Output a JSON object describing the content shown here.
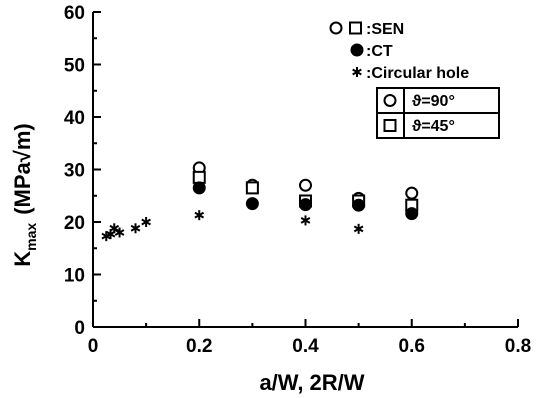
{
  "chart_data": {
    "type": "scatter",
    "xlabel": "a/W, 2R/W",
    "ylabel": "K_max (MPa√m)",
    "ylabel_main": "K",
    "ylabel_sub": "max",
    "ylabel_unit": "(MPa√m)",
    "xlim": [
      0,
      0.8
    ],
    "ylim": [
      0,
      60
    ],
    "x_ticks": [
      "0",
      "0.2",
      "0.4",
      "0.6",
      "0.8"
    ],
    "y_ticks": [
      "0",
      "10",
      "20",
      "30",
      "40",
      "50",
      "60"
    ],
    "grid": false,
    "legend_placement": "top-right",
    "legend": {
      "sen_label": ":SEN",
      "ct_label": ":CT",
      "hole_label": ":Circular hole",
      "angle_90": "ϑ=90°",
      "angle_45": "ϑ=45°"
    },
    "series": [
      {
        "name": "SEN ϑ=90°",
        "marker": "open-circle",
        "points": [
          [
            0.2,
            30.3
          ],
          [
            0.3,
            27.0
          ],
          [
            0.4,
            27.0
          ],
          [
            0.5,
            24.5
          ],
          [
            0.6,
            25.5
          ]
        ]
      },
      {
        "name": "SEN ϑ=45°",
        "marker": "open-square",
        "points": [
          [
            0.2,
            28.5
          ],
          [
            0.3,
            26.5
          ],
          [
            0.4,
            24.0
          ],
          [
            0.5,
            24.0
          ],
          [
            0.6,
            23.2
          ]
        ]
      },
      {
        "name": "CT",
        "marker": "filled-circle",
        "points": [
          [
            0.2,
            26.5
          ],
          [
            0.3,
            23.5
          ],
          [
            0.4,
            23.3
          ],
          [
            0.5,
            23.2
          ],
          [
            0.6,
            21.6
          ]
        ]
      },
      {
        "name": "Circular hole",
        "marker": "asterisk",
        "points": [
          [
            0.025,
            17.3
          ],
          [
            0.033,
            17.7
          ],
          [
            0.04,
            18.8
          ],
          [
            0.05,
            18.0
          ],
          [
            0.08,
            18.8
          ],
          [
            0.1,
            20.0
          ],
          [
            0.2,
            21.3
          ],
          [
            0.4,
            20.3
          ],
          [
            0.5,
            18.7
          ]
        ]
      }
    ]
  }
}
